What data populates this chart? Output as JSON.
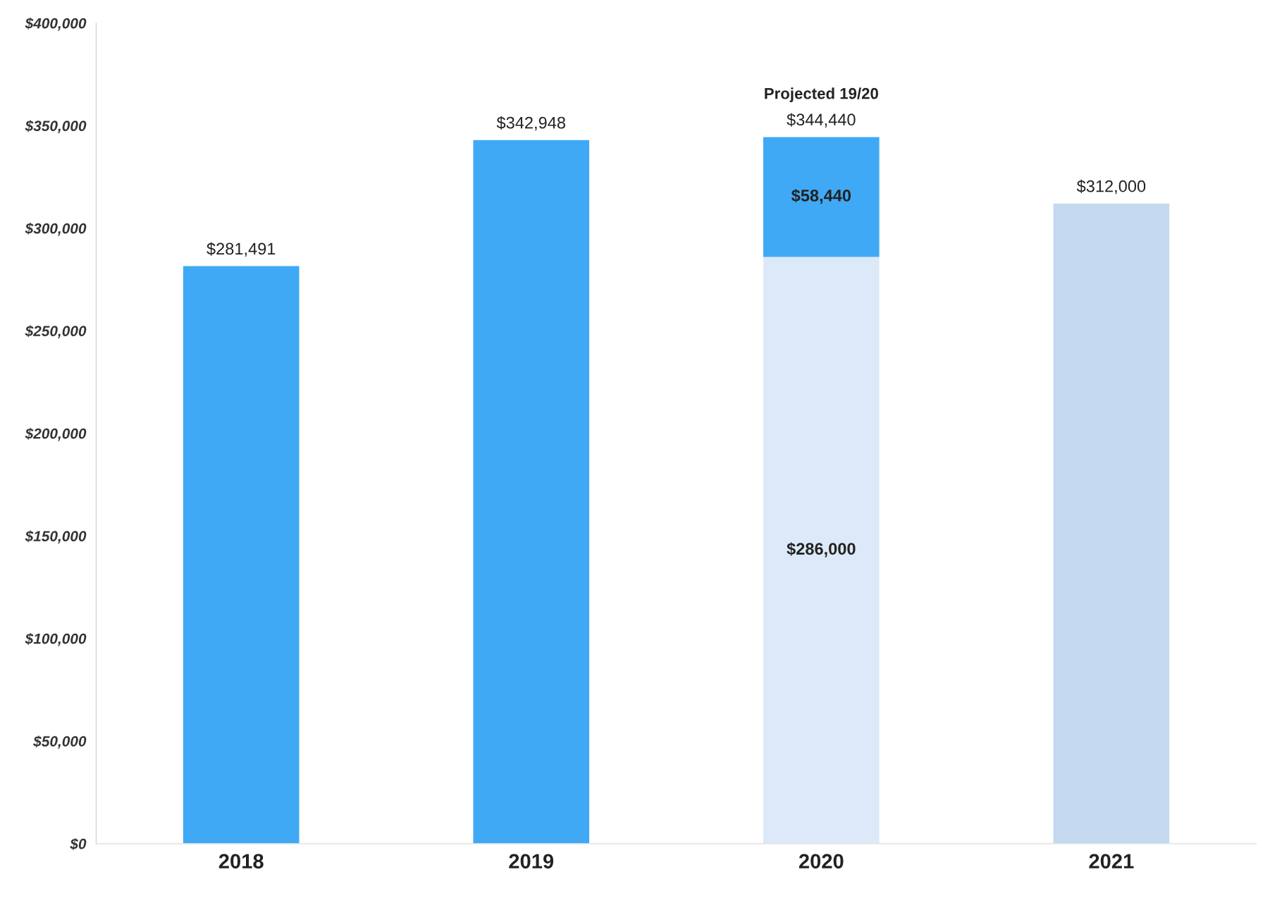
{
  "chart_data": {
    "type": "bar",
    "stacked": true,
    "categories": [
      "2018",
      "2019",
      "2020",
      "2021"
    ],
    "series": [
      {
        "colors": [
          "#3fa9f5",
          "#3fa9f5",
          "#dce9f8",
          "#c4d9f0"
        ],
        "values": [
          281491,
          342948,
          286000,
          312000
        ],
        "value_labels": [
          "$281,491",
          "$342,948",
          "$286,000",
          "$312,000"
        ]
      },
      {
        "color": "#3fa9f5",
        "values": [
          null,
          null,
          58440,
          null
        ],
        "value_labels": [
          null,
          null,
          "$58,440",
          null
        ]
      }
    ],
    "totals": [
      null,
      null,
      "$344,440",
      null
    ],
    "annotations": [
      {
        "text": "Projected 19/20",
        "x": "2020",
        "y": 344440
      }
    ],
    "ylim": [
      0,
      400000
    ],
    "yticks": [
      {
        "value": 0,
        "label": "$0"
      },
      {
        "value": 50000,
        "label": "$50,000"
      },
      {
        "value": 100000,
        "label": "$100,000"
      },
      {
        "value": 150000,
        "label": "$150,000"
      },
      {
        "value": 200000,
        "label": "$200,000"
      },
      {
        "value": 250000,
        "label": "$250,000"
      },
      {
        "value": 300000,
        "label": "$300,000"
      },
      {
        "value": 350000,
        "label": "$350,000"
      },
      {
        "value": 400000,
        "label": "$400,000"
      }
    ],
    "grid": false,
    "legend": false
  }
}
